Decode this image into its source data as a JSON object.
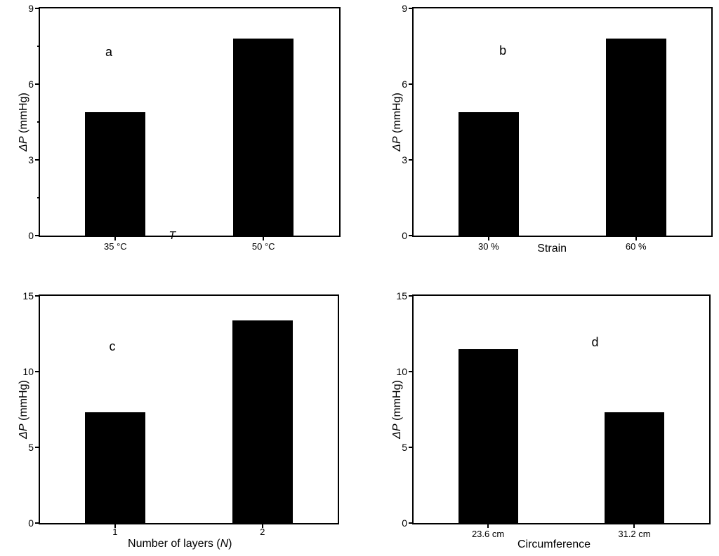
{
  "figure": {
    "background_color": "#ffffff",
    "bar_color": "#000000",
    "axis_color": "#000000",
    "text_color": "#000000"
  },
  "chart_data": [
    {
      "panel_label": "a",
      "type": "bar",
      "categories": [
        "35 °C",
        "50 °C"
      ],
      "values": [
        4.9,
        7.8
      ],
      "title": "",
      "xlabel": "T",
      "xlabel_parts": {
        "pre": "",
        "italic": "T",
        "post": ""
      },
      "ylabel": "ΔP (mmHg)",
      "ylabel_parts": {
        "pre": "",
        "italic": "ΔP",
        "post": " (mmHg)"
      },
      "ylim": [
        0,
        9
      ],
      "yticks": [
        0,
        3,
        6,
        9
      ],
      "yticks_minor": [
        1.5,
        4.5,
        7.5
      ],
      "grid": false,
      "legend": false
    },
    {
      "panel_label": "b",
      "type": "bar",
      "categories": [
        "30 %",
        "60 %"
      ],
      "values": [
        4.9,
        7.8
      ],
      "title": "",
      "xlabel": "Strain",
      "xlabel_parts": {
        "pre": "Strain",
        "italic": "",
        "post": ""
      },
      "ylabel": "ΔP (mmHg)",
      "ylabel_parts": {
        "pre": "",
        "italic": "ΔP",
        "post": " (mmHg)"
      },
      "ylim": [
        0,
        9
      ],
      "yticks": [
        0,
        3,
        6,
        9
      ],
      "yticks_minor": [],
      "grid": false,
      "legend": false
    },
    {
      "panel_label": "c",
      "type": "bar",
      "categories": [
        "1",
        "2"
      ],
      "values": [
        7.3,
        13.4
      ],
      "title": "",
      "xlabel": "Number of layers (N)",
      "xlabel_parts": {
        "pre": "Number of layers (",
        "italic": "N",
        "post": ")"
      },
      "ylabel": "ΔP (mmHg)",
      "ylabel_parts": {
        "pre": "",
        "italic": "ΔP",
        "post": " (mmHg)"
      },
      "ylim": [
        0,
        15
      ],
      "yticks": [
        0,
        5,
        10,
        15
      ],
      "yticks_minor": [],
      "grid": false,
      "legend": false
    },
    {
      "panel_label": "d",
      "type": "bar",
      "categories": [
        "23.6 cm",
        "31.2 cm"
      ],
      "values": [
        11.5,
        7.3
      ],
      "title": "",
      "xlabel": "Circumference",
      "xlabel_parts": {
        "pre": "Circumference",
        "italic": "",
        "post": ""
      },
      "ylabel": "ΔP (mmHg)",
      "ylabel_parts": {
        "pre": "",
        "italic": "ΔP",
        "post": " (mmHg)"
      },
      "ylim": [
        0,
        15
      ],
      "yticks": [
        0,
        5,
        10,
        15
      ],
      "yticks_minor": [],
      "grid": false,
      "legend": false
    }
  ]
}
